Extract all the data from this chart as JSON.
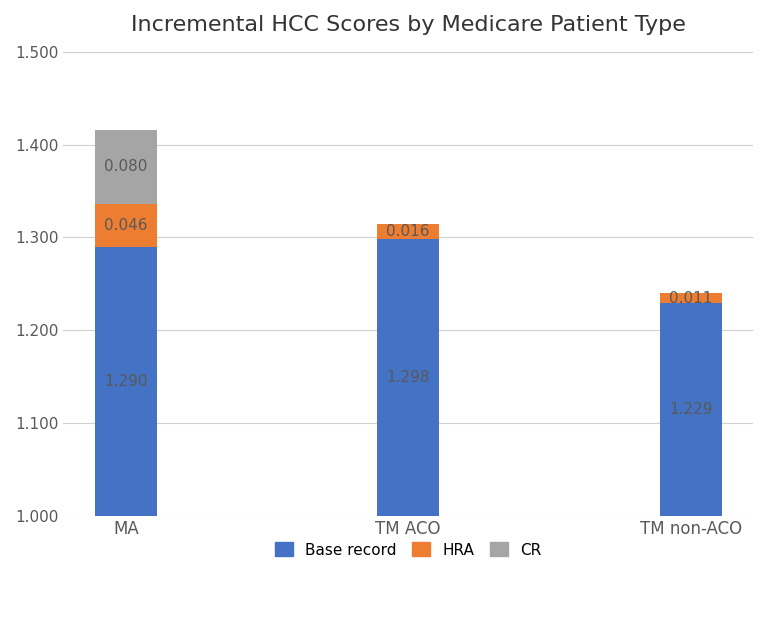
{
  "title": "Incremental HCC Scores by Medicare Patient Type",
  "categories": [
    "MA",
    "TM ACO",
    "TM non-ACO"
  ],
  "base_values": [
    1.29,
    1.298,
    1.229
  ],
  "hra_values": [
    0.046,
    0.016,
    0.011
  ],
  "cr_values": [
    0.08,
    0.0,
    0.0
  ],
  "base_color": "#4472C4",
  "hra_color": "#ED7D31",
  "cr_color": "#A5A5A5",
  "base_label": "Base record",
  "hra_label": "HRA",
  "cr_label": "CR",
  "ylim_min": 1.0,
  "ylim_max": 1.5,
  "yticks": [
    1.0,
    1.1,
    1.2,
    1.3,
    1.4,
    1.5
  ],
  "background_color": "#FFFFFF",
  "title_fontsize": 16,
  "label_fontsize": 11,
  "tick_fontsize": 11,
  "legend_fontsize": 11,
  "bar_width": 0.22,
  "text_color_base": "#595959",
  "text_color_small": "#595959"
}
